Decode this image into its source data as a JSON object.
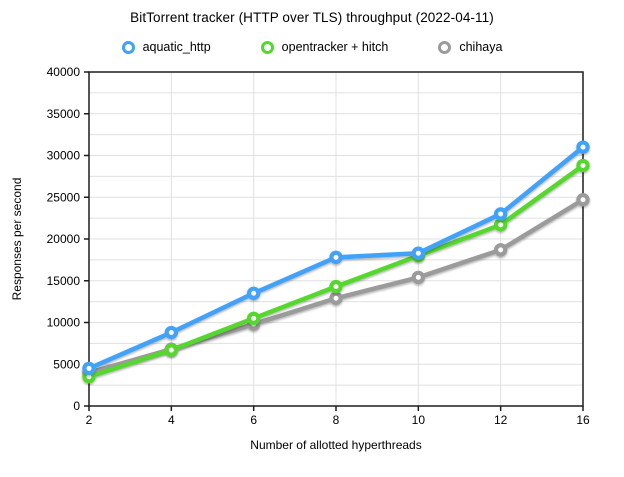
{
  "title": "BitTorrent tracker (HTTP over TLS) throughput (2022-04-11)",
  "legend": [
    {
      "label": "aquatic_http",
      "color": "#42a1f8"
    },
    {
      "label": "opentracker + hitch",
      "color": "#56d72f"
    },
    {
      "label": "chihaya",
      "color": "#9b9b9b"
    }
  ],
  "chart_data": {
    "type": "line",
    "title": "BitTorrent tracker (HTTP over TLS) throughput (2022-04-11)",
    "xlabel": "Number of allotted hyperthreads",
    "ylabel": "Responses per second",
    "x": [
      2,
      4,
      6,
      8,
      10,
      12,
      16
    ],
    "xtick_labels": [
      "2",
      "4",
      "6",
      "8",
      "10",
      "12",
      "16"
    ],
    "x_axis_note": "category axis, points equally spaced",
    "ylim": [
      0,
      40000
    ],
    "ytick_step": 5000,
    "ytick_labels": [
      "0",
      "5000",
      "10000",
      "15000",
      "20000",
      "25000",
      "30000",
      "35000",
      "40000"
    ],
    "grid_minor_step": 2500,
    "grid": "on",
    "legend_position": "top",
    "marker": "open-circle",
    "series": [
      {
        "name": "aquatic_http",
        "color": "#42a1f8",
        "values": [
          4500,
          8800,
          13500,
          17800,
          18300,
          23000,
          31000
        ]
      },
      {
        "name": "opentracker + hitch",
        "color": "#56d72f",
        "values": [
          3500,
          6700,
          10500,
          14300,
          18000,
          21700,
          28800
        ]
      },
      {
        "name": "chihaya",
        "color": "#9b9b9b",
        "values": [
          4000,
          6800,
          9800,
          12900,
          15400,
          18700,
          24700
        ]
      }
    ],
    "style": {
      "gridline_color": "#e0e0e0",
      "frame_color": "#1d1d1f",
      "background": "#ffffff",
      "line_width": 4.5
    }
  }
}
